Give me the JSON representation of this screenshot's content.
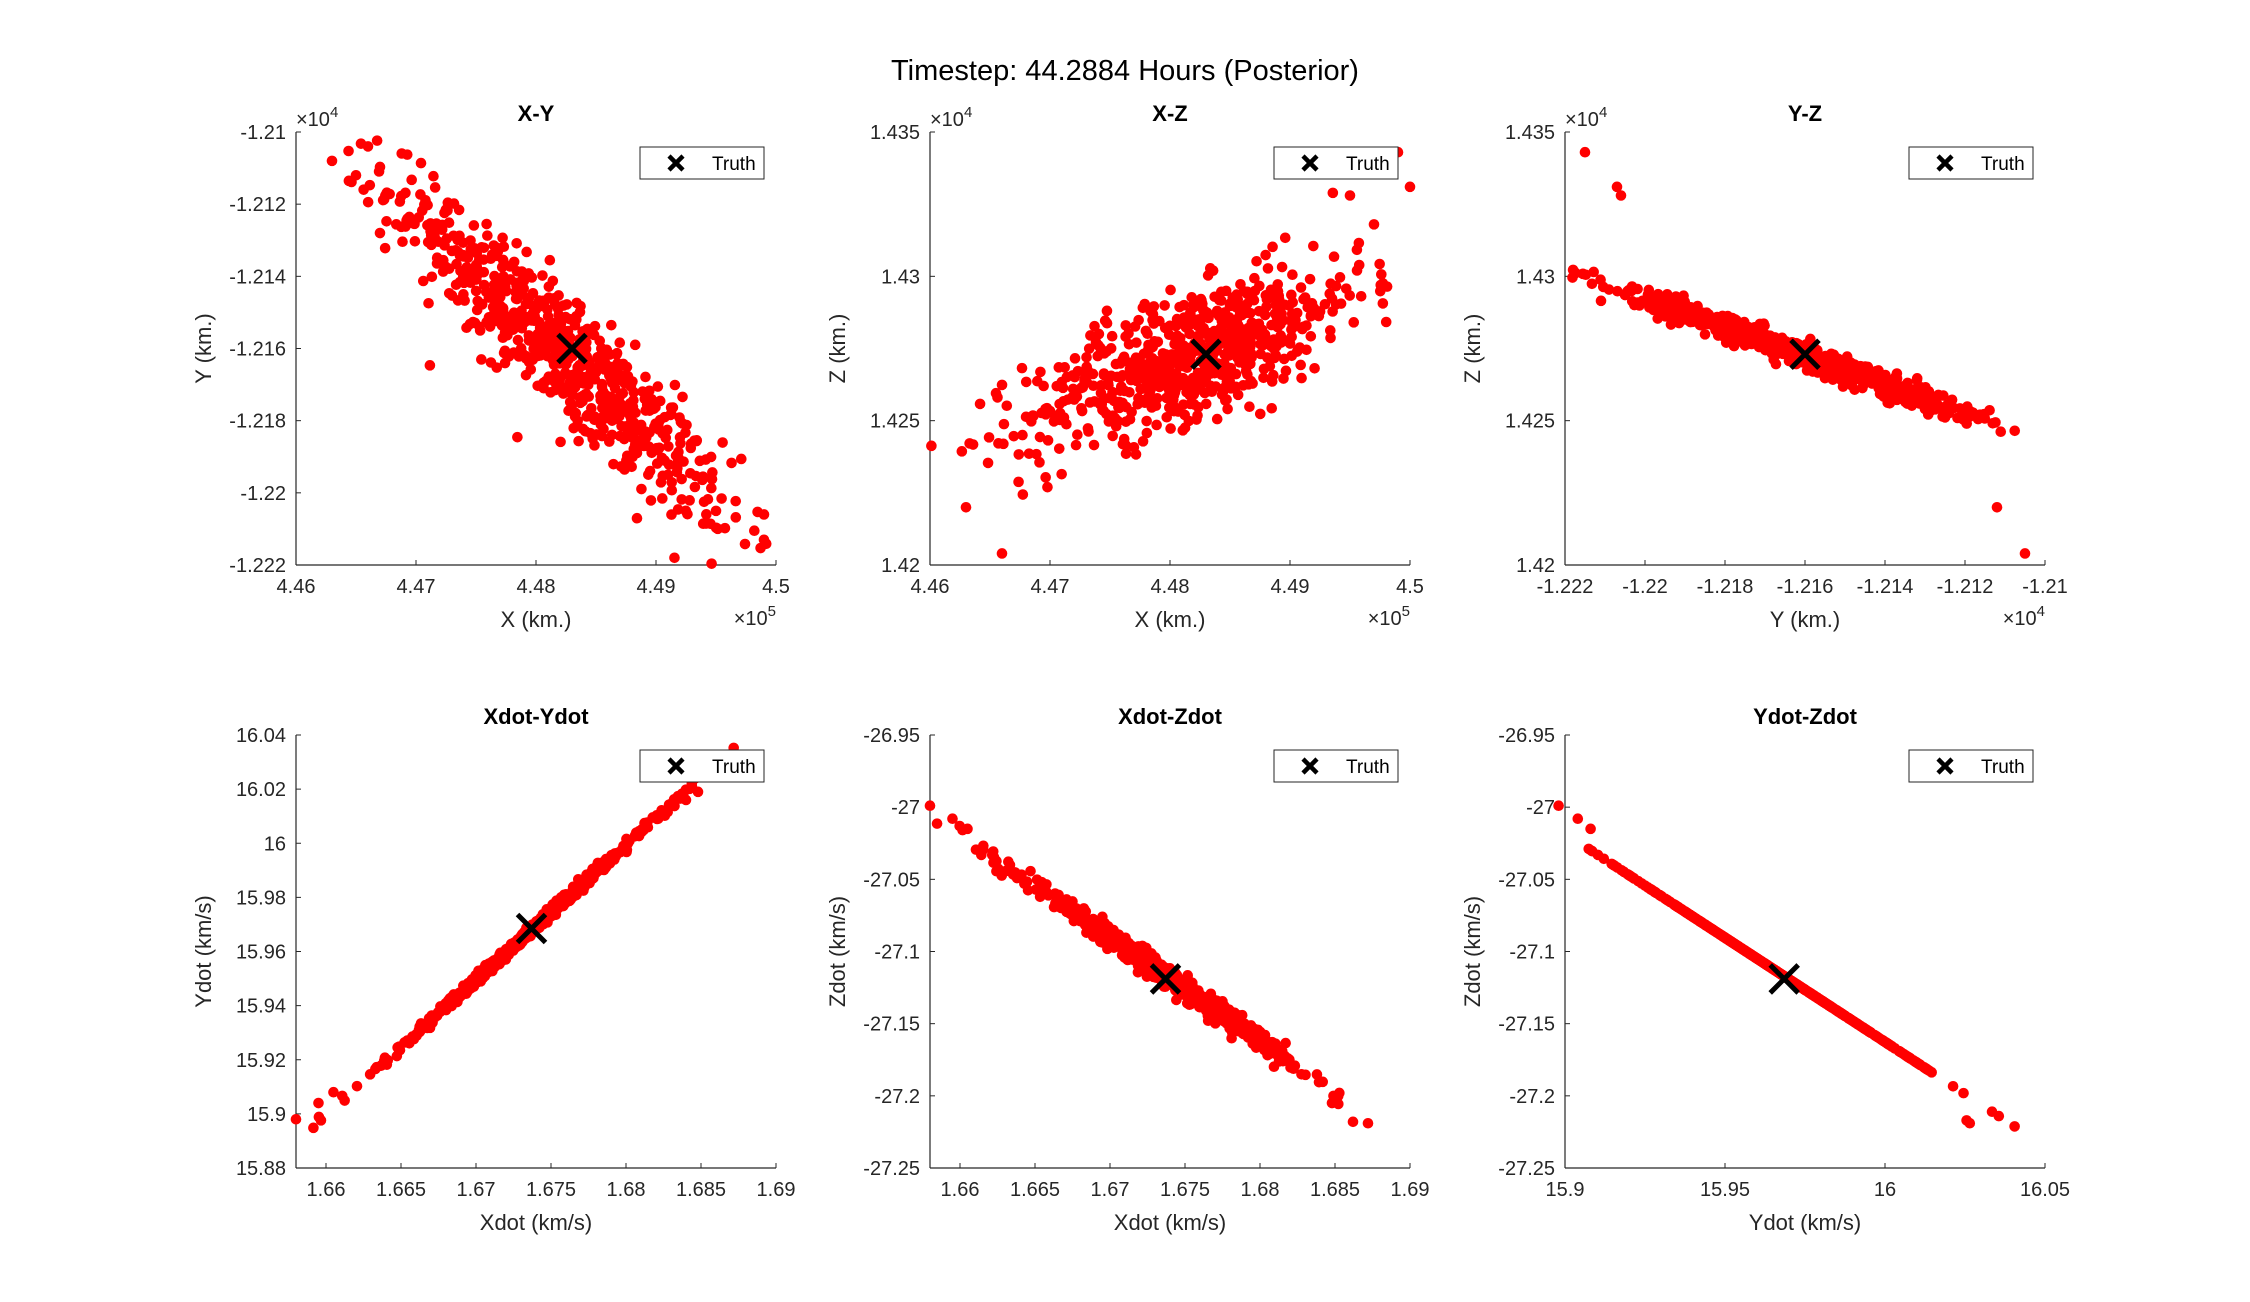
{
  "figure": {
    "title": "Timestep: 44.2884 Hours (Posterior)"
  },
  "style": {
    "particle_color": "#ff0000",
    "truth_color": "#000000",
    "axis_color": "#262626"
  },
  "chart_data": [
    {
      "type": "scatter",
      "title": "X-Y",
      "xlabel": "X (km.)",
      "ylabel": "Y (km.)",
      "xlim": [
        446000,
        450000
      ],
      "ylim": [
        -12220,
        -12100
      ],
      "xticks": [
        446000,
        447000,
        448000,
        449000,
        450000
      ],
      "xticklabels": [
        "4.46",
        "4.47",
        "4.48",
        "4.49",
        "4.5"
      ],
      "yticks": [
        -12220,
        -12200,
        -12180,
        -12160,
        -12140,
        -12120,
        -12100
      ],
      "yticklabels": [
        "-1.222",
        "-1.22",
        "-1.218",
        "-1.216",
        "-1.214",
        "-1.212",
        "-1.21"
      ],
      "x_multiplier": "×10^5",
      "y_multiplier": "×10^4",
      "legend": {
        "label": "Truth",
        "location": "top-right"
      },
      "truth": [
        448300,
        -12160
      ],
      "cloud": {
        "count": 700,
        "center": [
          448200,
          -12161
        ],
        "spread_major": [
          700,
          -22
        ],
        "spread_minor": [
          0,
          9
        ],
        "outliers": [
          [
            446300,
            -12108
          ],
          [
            446600,
            -12104
          ],
          [
            446500,
            -12112
          ],
          [
            449900,
            -12213
          ],
          [
            449900,
            -12206
          ],
          [
            449500,
            -12205
          ],
          [
            446700,
            -12128
          ],
          [
            449100,
            -12195
          ]
        ]
      },
      "series": [
        {
          "name": "Truth",
          "marker": "x"
        }
      ]
    },
    {
      "type": "scatter",
      "title": "X-Z",
      "xlabel": "X (km.)",
      "ylabel": "Z (km.)",
      "xlim": [
        446000,
        450000
      ],
      "ylim": [
        14200,
        14350
      ],
      "xticks": [
        446000,
        447000,
        448000,
        449000,
        450000
      ],
      "xticklabels": [
        "4.46",
        "4.47",
        "4.48",
        "4.49",
        "4.5"
      ],
      "yticks": [
        14200,
        14250,
        14300,
        14350
      ],
      "yticklabels": [
        "1.42",
        "1.425",
        "1.43",
        "1.435"
      ],
      "x_multiplier": "×10^5",
      "y_multiplier": "×10^4",
      "legend": {
        "label": "Truth",
        "location": "top-right"
      },
      "truth": [
        448300,
        14273
      ],
      "cloud": {
        "count": 700,
        "center": [
          448200,
          14273
        ],
        "spread_major": [
          700,
          11
        ],
        "spread_minor": [
          0,
          11
        ],
        "outliers": [
          [
            446600,
            14204
          ],
          [
            446300,
            14220
          ],
          [
            449900,
            14343
          ],
          [
            450000,
            14331
          ],
          [
            449500,
            14328
          ],
          [
            449700,
            14318
          ]
        ]
      },
      "series": [
        {
          "name": "Truth",
          "marker": "x"
        }
      ]
    },
    {
      "type": "scatter",
      "title": "Y-Z",
      "xlabel": "Y (km.)",
      "ylabel": "Z (km.)",
      "xlim": [
        -12220,
        -12100
      ],
      "ylim": [
        14200,
        14350
      ],
      "xticks": [
        -12220,
        -12200,
        -12180,
        -12160,
        -12140,
        -12120,
        -12100
      ],
      "xticklabels": [
        "-1.222",
        "-1.22",
        "-1.218",
        "-1.216",
        "-1.214",
        "-1.212",
        "-1.21"
      ],
      "yticks": [
        14200,
        14250,
        14300,
        14350
      ],
      "yticklabels": [
        "1.42",
        "1.425",
        "1.43",
        "1.435"
      ],
      "x_multiplier": "×10^4",
      "y_multiplier": "×10^4",
      "legend": {
        "label": "Truth",
        "location": "top-right"
      },
      "truth": [
        -12160,
        14273
      ],
      "cloud": {
        "count": 700,
        "center": [
          -12161,
          14273
        ],
        "spread_major": [
          -22,
          11
        ],
        "spread_minor": [
          1.5,
          1.5
        ],
        "outliers": [
          [
            -12215,
            14343
          ],
          [
            -12207,
            14331
          ],
          [
            -12206,
            14328
          ],
          [
            -12105,
            14204
          ],
          [
            -12112,
            14220
          ]
        ]
      },
      "series": [
        {
          "name": "Truth",
          "marker": "x"
        }
      ]
    },
    {
      "type": "scatter",
      "title": "Xdot-Ydot",
      "xlabel": "Xdot (km/s)",
      "ylabel": "Ydot (km/s)",
      "xlim": [
        1.658,
        1.69
      ],
      "ylim": [
        15.88,
        16.04
      ],
      "xticks": [
        1.66,
        1.665,
        1.67,
        1.675,
        1.68,
        1.685,
        1.69
      ],
      "xticklabels": [
        "1.66",
        "1.665",
        "1.67",
        "1.675",
        "1.68",
        "1.685",
        "1.69"
      ],
      "yticks": [
        15.88,
        15.9,
        15.92,
        15.94,
        15.96,
        15.98,
        16.0,
        16.02,
        16.04
      ],
      "yticklabels": [
        "15.88",
        "15.9",
        "15.92",
        "15.94",
        "15.96",
        "15.98",
        "16",
        "16.02",
        "16.04"
      ],
      "legend": {
        "label": "Truth",
        "location": "top-right"
      },
      "truth": [
        1.6737,
        15.9685
      ],
      "cloud": {
        "count": 700,
        "center": [
          1.6735,
          15.967
        ],
        "spread_major": [
          0.0045,
          0.0225
        ],
        "spread_minor": [
          0.0002,
          0.0
        ],
        "outliers": [
          [
            1.658,
            15.898
          ],
          [
            1.6595,
            15.904
          ],
          [
            1.6605,
            15.908
          ],
          [
            1.6848,
            16.019
          ],
          [
            1.684,
            16.016
          ]
        ]
      },
      "series": [
        {
          "name": "Truth",
          "marker": "x"
        }
      ]
    },
    {
      "type": "scatter",
      "title": "Xdot-Zdot",
      "xlabel": "Xdot (km/s)",
      "ylabel": "Zdot (km/s)",
      "xlim": [
        1.658,
        1.69
      ],
      "ylim": [
        -27.25,
        -26.95
      ],
      "xticks": [
        1.66,
        1.665,
        1.67,
        1.675,
        1.68,
        1.685,
        1.69
      ],
      "xticklabels": [
        "1.66",
        "1.665",
        "1.67",
        "1.675",
        "1.68",
        "1.685",
        "1.69"
      ],
      "yticks": [
        -27.25,
        -27.2,
        -27.15,
        -27.1,
        -27.05,
        -27.0,
        -26.95
      ],
      "yticklabels": [
        "-27.25",
        "-27.2",
        "-27.15",
        "-27.1",
        "-27.05",
        "-27",
        "-26.95"
      ],
      "legend": {
        "label": "Truth",
        "location": "top-right"
      },
      "truth": [
        1.6737,
        -27.119
      ],
      "cloud": {
        "count": 700,
        "center": [
          1.6735,
          -27.115
        ],
        "spread_major": [
          0.0045,
          -0.032
        ],
        "spread_minor": [
          0.0,
          0.0035
        ],
        "outliers": [
          [
            1.658,
            -26.999
          ],
          [
            1.6595,
            -27.008
          ],
          [
            1.6605,
            -27.015
          ],
          [
            1.6862,
            -27.218
          ],
          [
            1.6872,
            -27.219
          ],
          [
            1.6848,
            -27.205
          ]
        ]
      },
      "series": [
        {
          "name": "Truth",
          "marker": "x"
        }
      ]
    },
    {
      "type": "scatter",
      "title": "Ydot-Zdot",
      "xlabel": "Ydot (km/s)",
      "ylabel": "Zdot (km/s)",
      "xlim": [
        15.9,
        16.05
      ],
      "ylim": [
        -27.25,
        -26.95
      ],
      "xticks": [
        15.9,
        15.95,
        16.0,
        16.05
      ],
      "xticklabels": [
        "15.9",
        "15.95",
        "16",
        "16.05"
      ],
      "yticks": [
        -27.25,
        -27.2,
        -27.15,
        -27.1,
        -27.05,
        -27.0,
        -26.95
      ],
      "yticklabels": [
        "-27.25",
        "-27.2",
        "-27.15",
        "-27.1",
        "-27.05",
        "-27",
        "-26.95"
      ],
      "legend": {
        "label": "Truth",
        "location": "top-right"
      },
      "truth": [
        15.9685,
        -27.119
      ],
      "cloud": {
        "count": 700,
        "center": [
          15.967,
          -27.115
        ],
        "spread_major": [
          0.0225,
          -0.0325
        ],
        "spread_minor": [
          0.0,
          0.0
        ],
        "outliers": [
          [
            15.898,
            -26.999
          ],
          [
            15.904,
            -27.008
          ],
          [
            15.908,
            -27.015
          ],
          [
            16.0255,
            -27.217
          ],
          [
            16.0265,
            -27.219
          ]
        ]
      },
      "series": [
        {
          "name": "Truth",
          "marker": "x"
        }
      ]
    }
  ]
}
